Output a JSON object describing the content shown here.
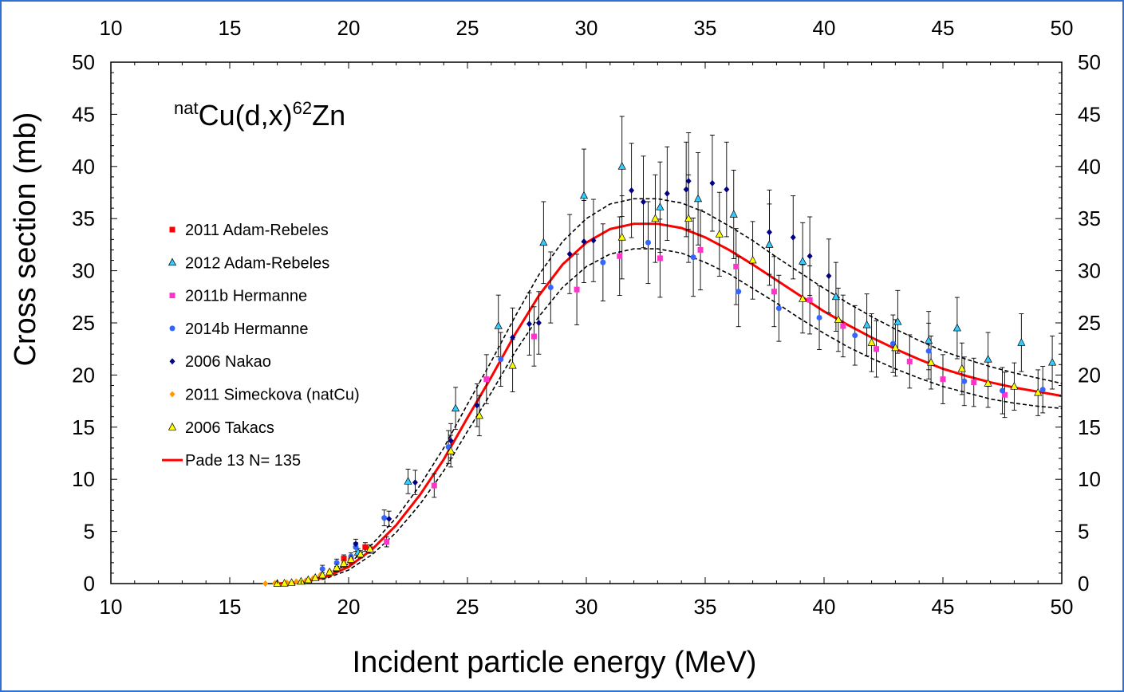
{
  "chart_data": {
    "type": "scatter",
    "annotation": {
      "prefix_sup": "nat",
      "main1": "Cu(d,x)",
      "sup2": "62",
      "main2": "Zn"
    },
    "xlabel": "Incident particle energy (MeV)",
    "ylabel": "Cross section (mb)",
    "xlim": [
      10,
      50
    ],
    "ylim": [
      0,
      50
    ],
    "xticks": [
      10,
      15,
      20,
      25,
      30,
      35,
      40,
      45,
      50
    ],
    "yticks": [
      0,
      5,
      10,
      15,
      20,
      25,
      30,
      35,
      40,
      45,
      50
    ],
    "grid": false,
    "legend_position": "left-middle",
    "series": [
      {
        "name": "2011 Adam-Rebeles",
        "marker": "square",
        "color": "#ff0000",
        "points": [
          [
            19.8,
            2.4
          ],
          [
            20.1,
            2.2
          ],
          [
            20.7,
            3.5
          ],
          [
            20.9,
            3.3
          ]
        ]
      },
      {
        "name": "2012 Adam-Rebeles",
        "marker": "triangle",
        "color": "#33ccff",
        "points": [
          [
            20.4,
            3.0
          ],
          [
            22.5,
            9.8
          ],
          [
            24.5,
            16.8
          ],
          [
            26.3,
            24.7
          ],
          [
            28.2,
            32.7
          ],
          [
            29.9,
            37.2
          ],
          [
            31.5,
            40.0
          ],
          [
            33.1,
            36.1
          ],
          [
            34.7,
            36.9
          ],
          [
            36.2,
            35.4
          ],
          [
            37.7,
            32.5
          ],
          [
            39.1,
            30.9
          ],
          [
            40.5,
            27.5
          ],
          [
            41.8,
            24.8
          ],
          [
            43.1,
            25.1
          ],
          [
            44.4,
            23.3
          ],
          [
            45.6,
            24.5
          ],
          [
            46.9,
            21.5
          ],
          [
            48.3,
            23.1
          ],
          [
            49.6,
            21.2
          ]
        ]
      },
      {
        "name": "2011b Hermanne",
        "marker": "square",
        "color": "#ff33cc",
        "points": [
          [
            21.6,
            4.0
          ],
          [
            23.6,
            9.4
          ],
          [
            25.8,
            19.6
          ],
          [
            27.8,
            23.7
          ],
          [
            29.6,
            28.2
          ],
          [
            31.4,
            31.4
          ],
          [
            33.1,
            31.2
          ],
          [
            34.8,
            32.0
          ],
          [
            36.3,
            30.4
          ],
          [
            37.9,
            28.0
          ],
          [
            39.4,
            27.2
          ],
          [
            40.8,
            24.7
          ],
          [
            42.2,
            22.5
          ],
          [
            43.6,
            21.3
          ],
          [
            45.0,
            19.6
          ],
          [
            46.3,
            19.3
          ],
          [
            47.6,
            18.1
          ]
        ]
      },
      {
        "name": "2014b Hermanne",
        "marker": "circle",
        "color": "#3366ff",
        "points": [
          [
            18.9,
            1.4
          ],
          [
            19.5,
            2.0
          ],
          [
            20.1,
            2.6
          ],
          [
            20.3,
            3.5
          ],
          [
            21.5,
            6.3
          ],
          [
            24.2,
            13.1
          ],
          [
            26.4,
            21.5
          ],
          [
            28.5,
            28.4
          ],
          [
            30.7,
            30.8
          ],
          [
            32.6,
            32.7
          ],
          [
            34.5,
            31.3
          ],
          [
            36.4,
            28.0
          ],
          [
            38.1,
            26.4
          ],
          [
            39.8,
            25.5
          ],
          [
            41.3,
            23.8
          ],
          [
            42.9,
            23.0
          ],
          [
            44.4,
            22.3
          ],
          [
            45.9,
            19.4
          ],
          [
            47.5,
            18.5
          ],
          [
            49.2,
            18.6
          ]
        ]
      },
      {
        "name": "2006 Nakao",
        "marker": "diamond",
        "color": "#000080",
        "points": [
          [
            20.3,
            3.8
          ],
          [
            21.7,
            6.2
          ],
          [
            22.8,
            9.7
          ],
          [
            24.3,
            13.7
          ],
          [
            25.4,
            17.1
          ],
          [
            26.9,
            23.6
          ],
          [
            27.6,
            24.9
          ],
          [
            28.0,
            25.0
          ],
          [
            29.3,
            31.6
          ],
          [
            29.9,
            32.8
          ],
          [
            30.3,
            32.9
          ],
          [
            31.9,
            37.7
          ],
          [
            32.4,
            36.6
          ],
          [
            33.4,
            37.4
          ],
          [
            34.2,
            37.8
          ],
          [
            34.3,
            38.6
          ],
          [
            35.3,
            38.4
          ],
          [
            35.9,
            37.8
          ],
          [
            37.7,
            33.7
          ],
          [
            38.7,
            33.2
          ],
          [
            39.4,
            31.4
          ],
          [
            40.2,
            29.5
          ]
        ]
      },
      {
        "name": "2011 Simeckova (natCu)",
        "marker": "diamond",
        "color": "#ff9900",
        "points": [
          [
            16.5,
            0.0
          ],
          [
            16.9,
            0.05
          ],
          [
            17.4,
            0.1
          ],
          [
            17.8,
            0.2
          ],
          [
            18.2,
            0.3
          ],
          [
            18.5,
            0.5
          ],
          [
            18.8,
            0.8
          ],
          [
            19.2,
            1.2
          ],
          [
            19.5,
            1.5
          ],
          [
            19.8,
            2.0
          ]
        ]
      },
      {
        "name": "2006 Takacs",
        "marker": "triangle",
        "color": "#ffff00",
        "points": [
          [
            17.0,
            0.0
          ],
          [
            17.3,
            0.02
          ],
          [
            17.6,
            0.08
          ],
          [
            18.0,
            0.2
          ],
          [
            18.3,
            0.35
          ],
          [
            18.6,
            0.55
          ],
          [
            18.9,
            0.8
          ],
          [
            19.2,
            1.1
          ],
          [
            19.5,
            1.5
          ],
          [
            19.8,
            1.9
          ],
          [
            20.1,
            2.3
          ],
          [
            20.5,
            2.8
          ],
          [
            20.9,
            3.3
          ],
          [
            24.3,
            12.7
          ],
          [
            25.5,
            16.1
          ],
          [
            26.9,
            20.9
          ],
          [
            31.5,
            33.2
          ],
          [
            32.9,
            35.0
          ],
          [
            34.3,
            35.0
          ],
          [
            35.6,
            33.5
          ],
          [
            37.0,
            31.0
          ],
          [
            39.1,
            27.3
          ],
          [
            40.6,
            25.3
          ],
          [
            42.0,
            23.1
          ],
          [
            43.0,
            22.6
          ],
          [
            44.5,
            21.2
          ],
          [
            45.8,
            20.6
          ],
          [
            46.9,
            19.2
          ],
          [
            48.0,
            18.9
          ],
          [
            49.0,
            18.3
          ]
        ]
      }
    ],
    "fit": {
      "name": "Pade 13 N= 135",
      "color": "#ff0000",
      "points": [
        [
          17.0,
          0.0
        ],
        [
          18.0,
          0.15
        ],
        [
          19.0,
          0.6
        ],
        [
          20.0,
          1.6
        ],
        [
          21.0,
          3.3
        ],
        [
          22.0,
          5.6
        ],
        [
          23.0,
          8.5
        ],
        [
          24.0,
          11.9
        ],
        [
          25.0,
          15.9
        ],
        [
          26.0,
          19.8
        ],
        [
          27.0,
          23.9
        ],
        [
          28.0,
          27.6
        ],
        [
          29.0,
          30.6
        ],
        [
          30.0,
          32.7
        ],
        [
          31.0,
          34.0
        ],
        [
          32.0,
          34.5
        ],
        [
          33.0,
          34.5
        ],
        [
          34.0,
          34.1
        ],
        [
          35.0,
          33.2
        ],
        [
          36.0,
          32.0
        ],
        [
          37.0,
          30.6
        ],
        [
          38.0,
          29.1
        ],
        [
          39.0,
          27.6
        ],
        [
          40.0,
          26.1
        ],
        [
          41.0,
          24.8
        ],
        [
          42.0,
          23.6
        ],
        [
          43.0,
          22.5
        ],
        [
          44.0,
          21.5
        ],
        [
          45.0,
          20.6
        ],
        [
          46.0,
          19.9
        ],
        [
          47.0,
          19.3
        ],
        [
          48.0,
          18.8
        ],
        [
          49.0,
          18.4
        ],
        [
          50.0,
          18.0
        ]
      ]
    },
    "band_upper": {
      "color": "#000000",
      "points": [
        [
          17.0,
          0.0
        ],
        [
          18.0,
          0.2
        ],
        [
          19.0,
          0.75
        ],
        [
          20.0,
          1.9
        ],
        [
          21.0,
          3.8
        ],
        [
          22.0,
          6.3
        ],
        [
          23.0,
          9.4
        ],
        [
          24.0,
          13.0
        ],
        [
          25.0,
          17.2
        ],
        [
          26.0,
          21.3
        ],
        [
          27.0,
          25.6
        ],
        [
          28.0,
          29.6
        ],
        [
          29.0,
          32.8
        ],
        [
          30.0,
          35.0
        ],
        [
          31.0,
          36.4
        ],
        [
          32.0,
          36.9
        ],
        [
          33.0,
          36.9
        ],
        [
          34.0,
          36.5
        ],
        [
          35.0,
          35.6
        ],
        [
          36.0,
          34.3
        ],
        [
          37.0,
          32.9
        ],
        [
          38.0,
          31.3
        ],
        [
          39.0,
          29.8
        ],
        [
          40.0,
          28.3
        ],
        [
          41.0,
          26.9
        ],
        [
          42.0,
          25.6
        ],
        [
          43.0,
          24.4
        ],
        [
          44.0,
          23.3
        ],
        [
          45.0,
          22.3
        ],
        [
          46.0,
          21.5
        ],
        [
          47.0,
          20.8
        ],
        [
          48.0,
          20.2
        ],
        [
          49.0,
          19.7
        ],
        [
          50.0,
          19.2
        ]
      ]
    },
    "band_lower": {
      "color": "#000000",
      "points": [
        [
          17.0,
          0.0
        ],
        [
          18.0,
          0.1
        ],
        [
          19.0,
          0.45
        ],
        [
          20.0,
          1.3
        ],
        [
          21.0,
          2.8
        ],
        [
          22.0,
          4.9
        ],
        [
          23.0,
          7.6
        ],
        [
          24.0,
          10.8
        ],
        [
          25.0,
          14.6
        ],
        [
          26.0,
          18.3
        ],
        [
          27.0,
          22.2
        ],
        [
          28.0,
          25.6
        ],
        [
          29.0,
          28.4
        ],
        [
          30.0,
          30.4
        ],
        [
          31.0,
          31.6
        ],
        [
          32.0,
          32.1
        ],
        [
          33.0,
          32.1
        ],
        [
          34.0,
          31.7
        ],
        [
          35.0,
          30.8
        ],
        [
          36.0,
          29.7
        ],
        [
          37.0,
          28.3
        ],
        [
          38.0,
          26.9
        ],
        [
          39.0,
          25.4
        ],
        [
          40.0,
          24.0
        ],
        [
          41.0,
          22.7
        ],
        [
          42.0,
          21.6
        ],
        [
          43.0,
          20.6
        ],
        [
          44.0,
          19.7
        ],
        [
          45.0,
          18.9
        ],
        [
          46.0,
          18.3
        ],
        [
          47.0,
          17.7
        ],
        [
          48.0,
          17.3
        ],
        [
          49.0,
          17.0
        ],
        [
          50.0,
          16.8
        ]
      ]
    }
  }
}
